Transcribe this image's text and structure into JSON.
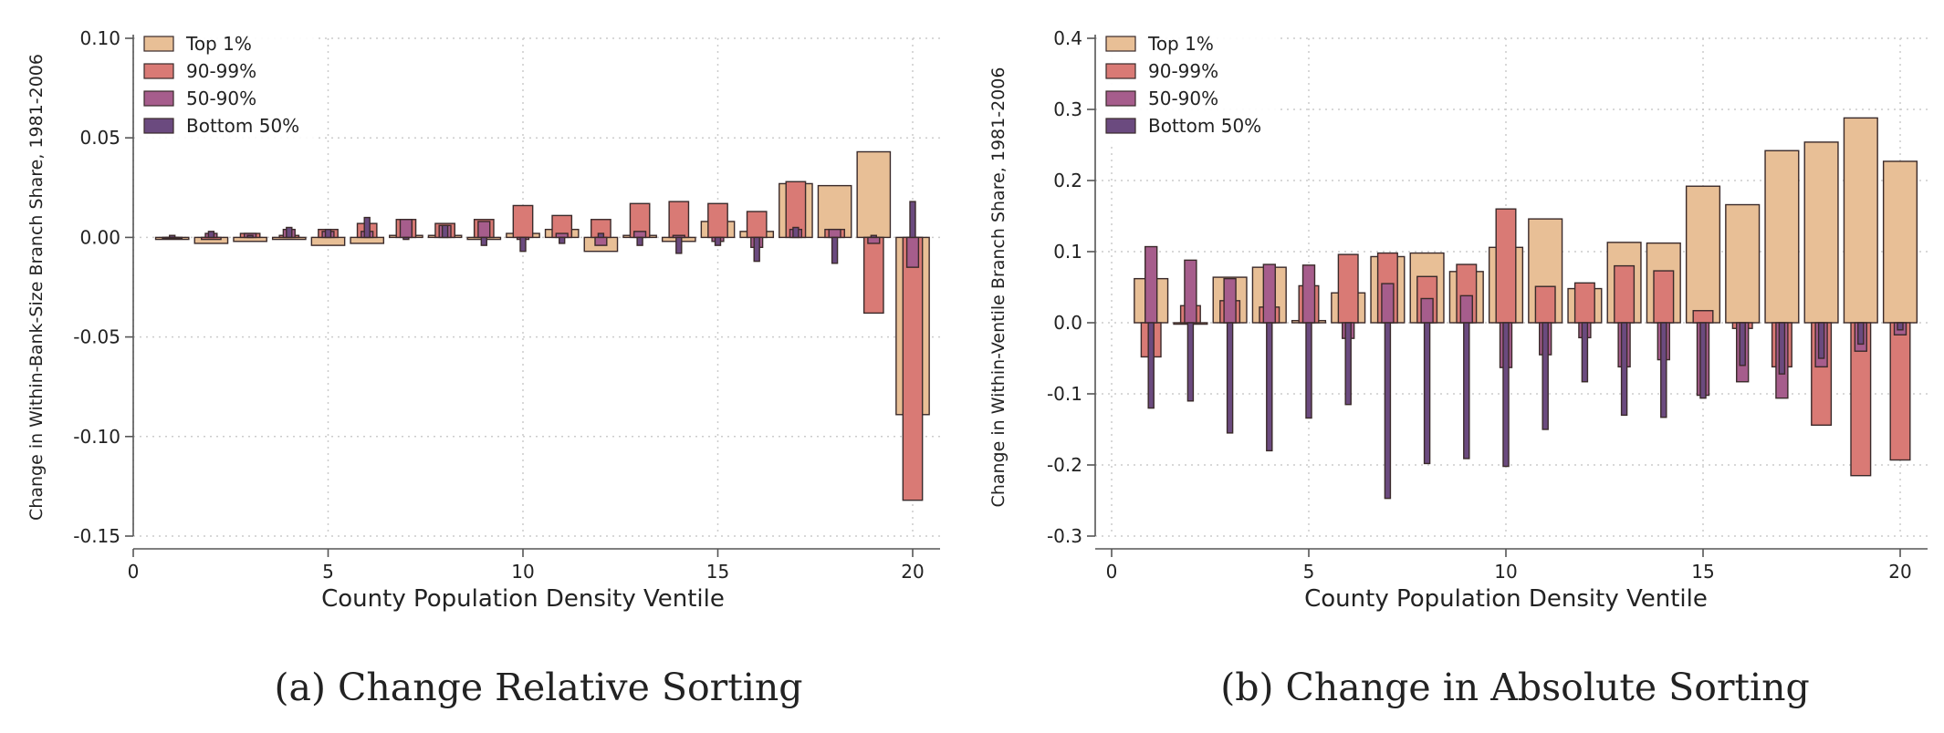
{
  "figure": {
    "captions": [
      "(a) Change Relative Sorting",
      "(b) Change in Absolute Sorting"
    ]
  },
  "colors": {
    "Top 1%": "#e8bf96",
    "90-99%": "#d97a75",
    "50-90%": "#a65d8c",
    "Bottom 50%": "#6b4a7f",
    "edge": "#3a2a2a",
    "axis": "#555555",
    "grid": "#cccccc"
  },
  "chart_data": [
    {
      "type": "bar",
      "xlabel": "County Population Density Ventile",
      "ylabel": "Change in Within-Bank-Size Branch Share, 1981-2006",
      "xlim": [
        0,
        20
      ],
      "ylim": [
        -0.15,
        0.1
      ],
      "xticks": [
        0,
        5,
        10,
        15,
        20
      ],
      "xtick_labels": [
        "0",
        "5",
        "10",
        "15",
        "20"
      ],
      "yticks": [
        -0.15,
        -0.1,
        -0.05,
        0.0,
        0.05,
        0.1
      ],
      "ytick_labels": [
        "-0.15",
        "-0.10",
        "-0.05",
        "0.00",
        "0.05",
        "0.10"
      ],
      "grid": true,
      "legend": "top-left",
      "categories": [
        1,
        2,
        3,
        4,
        5,
        6,
        7,
        8,
        9,
        10,
        11,
        12,
        13,
        14,
        15,
        16,
        17,
        18,
        19,
        20
      ],
      "series": [
        {
          "name": "Top 1%",
          "values": [
            -0.001,
            -0.003,
            -0.002,
            -0.001,
            -0.004,
            -0.003,
            0.001,
            0.001,
            -0.001,
            0.002,
            0.004,
            -0.007,
            0.001,
            -0.002,
            0.008,
            0.003,
            0.027,
            0.026,
            0.043,
            -0.089
          ]
        },
        {
          "name": "90-99%",
          "values": [
            0.0,
            -0.001,
            0.002,
            0.001,
            0.004,
            0.007,
            0.009,
            0.007,
            0.009,
            0.016,
            0.011,
            0.009,
            0.017,
            0.018,
            0.017,
            0.013,
            0.028,
            0.004,
            -0.038,
            -0.132
          ]
        },
        {
          "name": "50-90%",
          "values": [
            0.0,
            0.002,
            0.002,
            0.004,
            0.003,
            0.003,
            0.009,
            0.006,
            0.008,
            -0.001,
            0.002,
            -0.004,
            0.003,
            0.001,
            -0.002,
            -0.005,
            0.004,
            0.004,
            -0.003,
            -0.015
          ]
        },
        {
          "name": "Bottom 50%",
          "values": [
            0.001,
            0.003,
            0.001,
            0.005,
            0.004,
            0.01,
            -0.001,
            0.006,
            -0.004,
            -0.007,
            -0.003,
            0.002,
            -0.004,
            -0.008,
            -0.004,
            -0.012,
            0.005,
            -0.013,
            0.001,
            0.018
          ]
        }
      ]
    },
    {
      "type": "bar",
      "xlabel": "County Population Density Ventile",
      "ylabel": "Change in Within-Ventile Branch Share, 1981-2006",
      "xlim": [
        0,
        20
      ],
      "ylim": [
        -0.3,
        0.4
      ],
      "xticks": [
        0,
        5,
        10,
        15,
        20
      ],
      "xtick_labels": [
        "0",
        "5",
        "10",
        "15",
        "20"
      ],
      "yticks": [
        -0.3,
        -0.2,
        -0.1,
        0.0,
        0.1,
        0.2,
        0.3,
        0.4
      ],
      "ytick_labels": [
        "-0.3",
        "-0.2",
        "-0.1",
        "0.0",
        "0.1",
        "0.2",
        "0.3",
        "0.4"
      ],
      "grid": true,
      "legend": "top-left",
      "categories": [
        1,
        2,
        3,
        4,
        5,
        6,
        7,
        8,
        9,
        10,
        11,
        12,
        13,
        14,
        15,
        16,
        17,
        18,
        19,
        20
      ],
      "series": [
        {
          "name": "Top 1%",
          "values": [
            0.062,
            -0.002,
            0.064,
            0.078,
            0.003,
            0.042,
            0.093,
            0.098,
            0.072,
            0.106,
            0.146,
            0.048,
            0.113,
            0.112,
            0.192,
            0.166,
            0.242,
            0.254,
            0.288,
            0.227
          ]
        },
        {
          "name": "90-99%",
          "values": [
            -0.048,
            0.024,
            0.031,
            0.022,
            0.052,
            0.096,
            0.098,
            0.065,
            0.082,
            0.16,
            0.051,
            0.056,
            0.08,
            0.073,
            0.017,
            -0.008,
            -0.062,
            -0.144,
            -0.215,
            -0.193
          ]
        },
        {
          "name": "50-90%",
          "values": [
            0.107,
            0.088,
            0.062,
            0.082,
            0.081,
            -0.022,
            0.055,
            0.034,
            0.038,
            -0.063,
            -0.045,
            -0.021,
            -0.062,
            -0.052,
            -0.102,
            -0.083,
            -0.106,
            -0.062,
            -0.04,
            -0.017
          ]
        },
        {
          "name": "Bottom 50%",
          "values": [
            -0.12,
            -0.11,
            -0.155,
            -0.18,
            -0.134,
            -0.115,
            -0.247,
            -0.198,
            -0.191,
            -0.202,
            -0.15,
            -0.083,
            -0.13,
            -0.133,
            -0.106,
            -0.06,
            -0.072,
            -0.05,
            -0.03,
            -0.01
          ]
        }
      ]
    }
  ]
}
